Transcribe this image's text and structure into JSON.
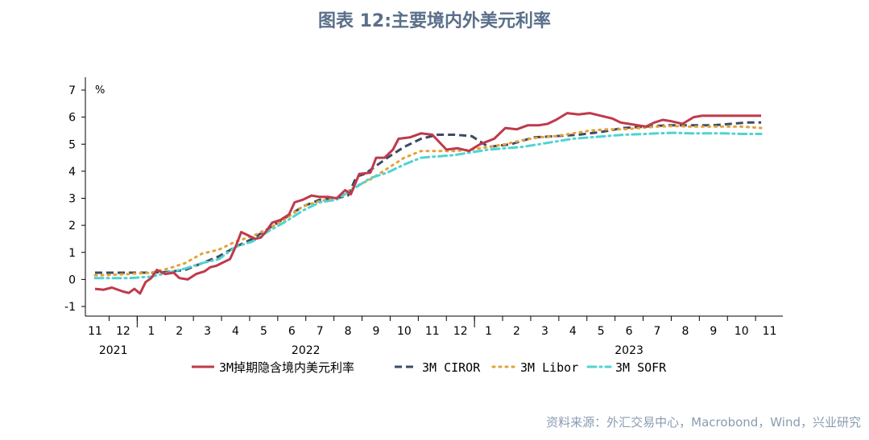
{
  "title": "图表 12:主要境内外美元利率",
  "source": "资料来源：外汇交易中心，Macrobond，Wind，兴业研究",
  "chart_data": {
    "type": "line",
    "unit": "%",
    "ylim": [
      -1,
      7
    ],
    "yticks": [
      -1,
      0,
      1,
      2,
      3,
      4,
      5,
      6,
      7
    ],
    "x_month_ticks": [
      "11",
      "12",
      "1",
      "2",
      "3",
      "4",
      "5",
      "6",
      "7",
      "8",
      "9",
      "10",
      "11",
      "12",
      "1",
      "2",
      "3",
      "4",
      "5",
      "6",
      "7",
      "8",
      "9",
      "10",
      "11"
    ],
    "x_year_labels": [
      "2021",
      "2022",
      "2023"
    ],
    "x_range": [
      "2021-11",
      "2023-11"
    ],
    "legend_position": "bottom",
    "series": [
      {
        "name": "3M掉期隐含境内美元利率",
        "color": "#c0394b",
        "style": "solid",
        "x": [
          0,
          0.3,
          0.6,
          1.0,
          1.2,
          1.4,
          1.6,
          1.8,
          2.0,
          2.2,
          2.5,
          2.8,
          3.0,
          3.3,
          3.6,
          3.9,
          4.1,
          4.3,
          4.6,
          4.8,
          5.0,
          5.2,
          5.4,
          5.7,
          5.9,
          6.1,
          6.3,
          6.6,
          6.9,
          7.1,
          7.4,
          7.7,
          8.0,
          8.3,
          8.6,
          8.9,
          9.1,
          9.4,
          9.8,
          10.0,
          10.3,
          10.6,
          10.8,
          11.2,
          11.6,
          12.0,
          12.5,
          12.9,
          13.3,
          13.7,
          14.2,
          14.6,
          15.0,
          15.4,
          15.8,
          16.1,
          16.4,
          16.8,
          17.2,
          17.6,
          18.0,
          18.4,
          18.7,
          19.0,
          19.3,
          19.6,
          19.9,
          20.2,
          20.5,
          20.9,
          21.3,
          21.6,
          22.0,
          22.4,
          22.8,
          23.1,
          23.4,
          23.7
        ],
        "values": [
          -0.35,
          -0.38,
          -0.3,
          -0.45,
          -0.5,
          -0.35,
          -0.52,
          -0.1,
          0.05,
          0.35,
          0.2,
          0.25,
          0.05,
          0.0,
          0.2,
          0.3,
          0.45,
          0.5,
          0.65,
          0.75,
          1.2,
          1.75,
          1.65,
          1.5,
          1.55,
          1.8,
          2.1,
          2.2,
          2.4,
          2.85,
          2.95,
          3.1,
          3.05,
          3.05,
          3.0,
          3.3,
          3.15,
          3.9,
          3.95,
          4.5,
          4.5,
          4.8,
          5.2,
          5.25,
          5.4,
          5.35,
          4.8,
          4.85,
          4.75,
          5.0,
          5.2,
          5.6,
          5.55,
          5.7,
          5.7,
          5.75,
          5.9,
          6.15,
          6.1,
          6.15,
          6.05,
          5.95,
          5.8,
          5.75,
          5.7,
          5.65,
          5.8,
          5.9,
          5.85,
          5.75,
          6.0,
          6.05,
          6.05,
          6.05,
          6.05,
          6.05,
          6.05,
          6.05
        ]
      },
      {
        "name": "3M CIROR",
        "color": "#3d4b66",
        "style": "dashed",
        "x": [
          0,
          0.6,
          1.2,
          2.0,
          2.6,
          3.2,
          3.8,
          4.4,
          5.0,
          5.6,
          6.2,
          6.8,
          7.4,
          8.0,
          8.6,
          9.0,
          9.3,
          9.6,
          10.0,
          10.4,
          11.0,
          11.6,
          12.2,
          12.8,
          13.4,
          14.0,
          14.8,
          15.6,
          16.4,
          17.2,
          18.0,
          18.8,
          19.6,
          20.4,
          21.2,
          22.0,
          22.6,
          23.2,
          23.7
        ],
        "values": [
          0.25,
          0.25,
          0.25,
          0.25,
          0.28,
          0.35,
          0.6,
          0.85,
          1.2,
          1.5,
          1.9,
          2.3,
          2.7,
          2.95,
          3.0,
          3.1,
          3.8,
          3.9,
          4.2,
          4.5,
          4.9,
          5.2,
          5.35,
          5.35,
          5.3,
          4.9,
          5.0,
          5.25,
          5.3,
          5.35,
          5.45,
          5.6,
          5.65,
          5.7,
          5.7,
          5.7,
          5.75,
          5.8,
          5.8
        ]
      },
      {
        "name": "3M Libor",
        "color": "#e5a238",
        "style": "dotted",
        "x": [
          0,
          0.6,
          1.2,
          2.0,
          2.6,
          3.2,
          3.8,
          4.4,
          5.0,
          5.6,
          6.2,
          6.8,
          7.4,
          8.0,
          8.6,
          9.2,
          9.8,
          10.4,
          11.0,
          11.6,
          12.2,
          12.8,
          13.4,
          14.0,
          14.6,
          15.2,
          15.8,
          16.4,
          17.0,
          17.6,
          18.2,
          18.8,
          19.4,
          20.0,
          20.6,
          21.2,
          21.8,
          22.4,
          23.0,
          23.7
        ],
        "values": [
          0.15,
          0.17,
          0.2,
          0.25,
          0.4,
          0.6,
          0.95,
          1.1,
          1.4,
          1.6,
          1.9,
          2.25,
          2.7,
          2.9,
          3.0,
          3.4,
          3.7,
          4.1,
          4.5,
          4.75,
          4.75,
          4.75,
          4.8,
          4.9,
          5.0,
          5.15,
          5.25,
          5.3,
          5.4,
          5.5,
          5.55,
          5.55,
          5.6,
          5.65,
          5.67,
          5.65,
          5.65,
          5.65,
          5.65,
          5.6
        ]
      },
      {
        "name": "3M SOFR",
        "color": "#4fd3d3",
        "style": "dashdot",
        "x": [
          0,
          0.6,
          1.2,
          2.0,
          2.6,
          3.2,
          3.8,
          4.4,
          5.0,
          5.6,
          6.2,
          6.8,
          7.4,
          8.0,
          8.6,
          9.2,
          9.8,
          10.4,
          11.0,
          11.6,
          12.2,
          12.8,
          13.4,
          14.0,
          14.6,
          15.2,
          15.8,
          16.4,
          17.0,
          17.6,
          18.2,
          18.8,
          19.4,
          20.0,
          20.6,
          21.2,
          21.8,
          22.4,
          23.0,
          23.7
        ],
        "values": [
          0.05,
          0.05,
          0.05,
          0.1,
          0.25,
          0.4,
          0.6,
          0.75,
          1.2,
          1.4,
          1.8,
          2.15,
          2.55,
          2.85,
          2.95,
          3.35,
          3.75,
          3.95,
          4.25,
          4.5,
          4.55,
          4.6,
          4.7,
          4.8,
          4.85,
          4.9,
          5.0,
          5.1,
          5.2,
          5.25,
          5.3,
          5.35,
          5.37,
          5.4,
          5.42,
          5.4,
          5.4,
          5.4,
          5.38,
          5.38
        ]
      }
    ]
  }
}
